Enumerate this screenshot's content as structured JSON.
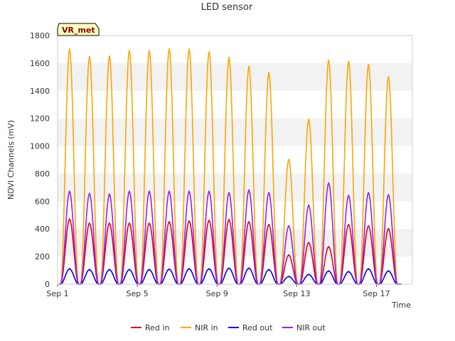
{
  "chart_data": {
    "type": "line",
    "title": "LED sensor",
    "xlabel": "Time",
    "ylabel": "NDVI Channels (mV)",
    "ylim": [
      0,
      1800
    ],
    "yticks": [
      0,
      200,
      400,
      600,
      800,
      1000,
      1200,
      1400,
      1600,
      1800
    ],
    "xlim": [
      1,
      18.8
    ],
    "xticks": [
      {
        "value": 1,
        "label": "Sep 1"
      },
      {
        "value": 5,
        "label": "Sep 5"
      },
      {
        "value": 9,
        "label": "Sep 9"
      },
      {
        "value": 13,
        "label": "Sep 13"
      },
      {
        "value": 17,
        "label": "Sep 17"
      }
    ],
    "site_badge": "VR_met",
    "grid": "horizontal bands",
    "legend_position": "bottom",
    "day_peaks": [
      1.6,
      2.6,
      3.6,
      4.6,
      5.6,
      6.6,
      7.6,
      8.6,
      9.6,
      10.6,
      11.6,
      12.6,
      13.6,
      14.6,
      15.6,
      16.6,
      17.6
    ],
    "series": [
      {
        "name": "Red in",
        "color": "#dd0022",
        "peak_values": [
          470,
          440,
          440,
          440,
          440,
          450,
          455,
          460,
          465,
          450,
          430,
          210,
          300,
          270,
          430,
          420,
          400
        ]
      },
      {
        "name": "NIR in",
        "color": "#ffa500",
        "peak_values": [
          1700,
          1645,
          1650,
          1690,
          1690,
          1700,
          1700,
          1680,
          1640,
          1575,
          1530,
          900,
          1190,
          1620,
          1610,
          1590,
          1500
        ]
      },
      {
        "name": "Red out",
        "color": "#0000ee",
        "peak_values": [
          110,
          105,
          105,
          105,
          105,
          108,
          110,
          110,
          115,
          115,
          105,
          55,
          70,
          95,
          90,
          110,
          95
        ]
      },
      {
        "name": "NIR out",
        "color": "#9a1ee6",
        "peak_values": [
          670,
          655,
          650,
          670,
          670,
          670,
          670,
          670,
          660,
          680,
          660,
          420,
          570,
          730,
          640,
          660,
          645
        ]
      }
    ]
  }
}
